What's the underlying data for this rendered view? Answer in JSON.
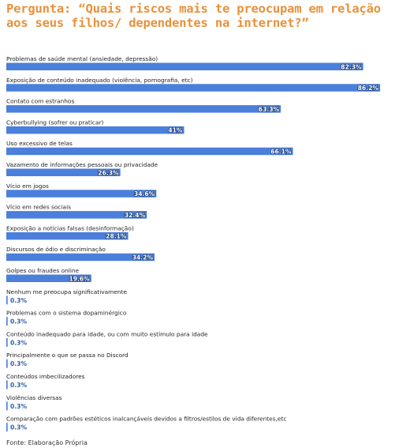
{
  "title": "Pergunta: “Quais riscos mais te preocupam em relação aos seus filhos/ dependentes na internet?”",
  "source": "Fonte: Elaboração Própria",
  "colors": {
    "bar": "#4a7fdc",
    "title": "#e8913a",
    "text": "#222222",
    "value_small": "#2f5ea8"
  },
  "chart_data": {
    "type": "bar",
    "orientation": "horizontal",
    "value_suffix": "%",
    "xlim": [
      0,
      100
    ],
    "grid": false,
    "legend": "none",
    "categories": [
      "Problemas de saúde mental (ansiedade, depressão)",
      "Exposição de conteúdo inadequado (violência, pornografia, etc)",
      "Contato com estranhos",
      "Cyberbullying (sofrer ou praticar)",
      "Uso excessivo de telas",
      "Vazamento de informações pessoais ou privacidade",
      "Vício em jogos",
      "Vício em redes sociais",
      "Exposição a notícias falsas (desinformação)",
      "Discursos de ódio e discriminação",
      "Golpes ou fraudes online",
      "Nenhum me preocupa significativamente",
      "Problemas com o sistema dopaminérgico",
      "Conteúdo inadequado para idade, ou com muito estímulo para idade",
      "Principalmente o que se passa no Discord",
      "Conteúdos imbecilizadores",
      "Violências diversas",
      "Comparação com padrões estéticos inalcançáveis devidos a filtros/estilos de vida diferentes,etc"
    ],
    "values": [
      82.3,
      86.2,
      63.3,
      41,
      66.1,
      26.3,
      34.6,
      32.4,
      28.1,
      34.2,
      19.6,
      0.3,
      0.3,
      0.3,
      0.3,
      0.3,
      0.3,
      0.3
    ],
    "labels": [
      "82.3%",
      "86.2%",
      "63.3%",
      "41%",
      "66.1%",
      "26.3%",
      "34.6%",
      "32.4%",
      "28.1%",
      "34.2%",
      "19.6%",
      "0.3%",
      "0.3%",
      "0.3%",
      "0.3%",
      "0.3%",
      "0.3%",
      "0.3%"
    ]
  }
}
